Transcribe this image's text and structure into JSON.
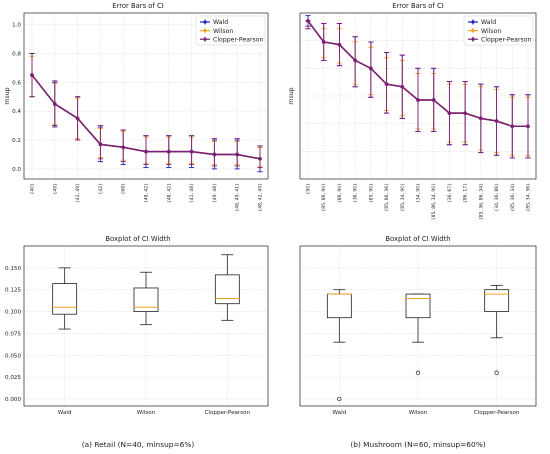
{
  "chart_data": [
    {
      "id": "retail-errorbars",
      "type": "line",
      "title": "Error Bars of CI",
      "ylabel": "msup",
      "ylim": [
        -0.07,
        1.08
      ],
      "yticks": [
        0.0,
        0.2,
        0.4,
        0.6,
        0.8,
        1.0
      ],
      "categories": [
        "{40}",
        "{49}",
        "{41, 49}",
        "{42}",
        "{68}",
        "{49, 42}",
        "{48, 42}",
        "{41, 48}",
        "{49, 48}",
        "{48, 49, 41}",
        "{48, 42, 49}"
      ],
      "legend_position": "top-right",
      "series": [
        {
          "name": "Wald",
          "color": "#1f1fbf",
          "values": [
            0.65,
            0.45,
            0.35,
            0.17,
            0.15,
            0.12,
            0.12,
            0.12,
            0.1,
            0.1,
            0.07
          ],
          "lower": [
            0.5,
            0.3,
            0.2,
            0.05,
            0.03,
            0.01,
            0.01,
            0.01,
            0.0,
            0.0,
            -0.02
          ],
          "upper": [
            0.8,
            0.6,
            0.5,
            0.29,
            0.27,
            0.23,
            0.23,
            0.23,
            0.2,
            0.2,
            0.15
          ]
        },
        {
          "name": "Wilson",
          "color": "#f5a623",
          "values": [
            0.65,
            0.45,
            0.35,
            0.17,
            0.15,
            0.12,
            0.12,
            0.12,
            0.1,
            0.1,
            0.07
          ],
          "lower": [
            0.5,
            0.31,
            0.21,
            0.08,
            0.06,
            0.04,
            0.04,
            0.04,
            0.03,
            0.03,
            0.02
          ],
          "upper": [
            0.78,
            0.59,
            0.49,
            0.28,
            0.26,
            0.22,
            0.22,
            0.22,
            0.19,
            0.19,
            0.15
          ]
        },
        {
          "name": "Clopper-Pearson",
          "color": "#7a1f7a",
          "values": [
            0.65,
            0.45,
            0.35,
            0.17,
            0.15,
            0.12,
            0.12,
            0.12,
            0.1,
            0.1,
            0.07
          ],
          "lower": [
            0.5,
            0.29,
            0.2,
            0.07,
            0.05,
            0.03,
            0.03,
            0.03,
            0.02,
            0.02,
            0.01
          ],
          "upper": [
            0.8,
            0.61,
            0.5,
            0.3,
            0.27,
            0.23,
            0.23,
            0.23,
            0.21,
            0.21,
            0.16
          ]
        }
      ]
    },
    {
      "id": "mushroom-errorbars",
      "type": "line",
      "title": "Error Bars of CI",
      "ylabel": "msup",
      "ylim": [
        0.4,
        1.03
      ],
      "yticks": [],
      "categories": [
        "{90}",
        "{85, 86, 90}",
        "{86, 90}",
        "{36, 90}",
        "{85, 90}",
        "{85, 86, 36}",
        "{85, 34, 90}",
        "{34, 90}",
        "{85, 86, 34, 90}",
        "{36, 67}",
        "{86, 17}",
        "{85, 36, 86, 34}",
        "{34, 36, 86}",
        "{85, 36, 34}",
        "{85, 34, 36}"
      ],
      "legend_position": "top-right",
      "series": [
        {
          "name": "Wald",
          "color": "#1f1fbf",
          "values": [
            1.0,
            0.92,
            0.91,
            0.85,
            0.82,
            0.76,
            0.75,
            0.7,
            0.7,
            0.65,
            0.65,
            0.63,
            0.62,
            0.6,
            0.6
          ],
          "lower": [
            0.98,
            0.85,
            0.83,
            0.75,
            0.71,
            0.65,
            0.63,
            0.58,
            0.58,
            0.53,
            0.53,
            0.5,
            0.49,
            0.48,
            0.48
          ],
          "upper": [
            1.02,
            0.99,
            0.99,
            0.94,
            0.92,
            0.88,
            0.87,
            0.82,
            0.82,
            0.77,
            0.77,
            0.76,
            0.75,
            0.72,
            0.72
          ]
        },
        {
          "name": "Wilson",
          "color": "#f5a623",
          "values": [
            1.0,
            0.92,
            0.91,
            0.85,
            0.82,
            0.76,
            0.75,
            0.7,
            0.7,
            0.65,
            0.65,
            0.63,
            0.62,
            0.6,
            0.6
          ],
          "lower": [
            0.97,
            0.86,
            0.84,
            0.76,
            0.72,
            0.66,
            0.64,
            0.59,
            0.59,
            0.54,
            0.54,
            0.51,
            0.5,
            0.49,
            0.49
          ],
          "upper": [
            1.0,
            0.97,
            0.97,
            0.92,
            0.9,
            0.86,
            0.85,
            0.8,
            0.8,
            0.76,
            0.76,
            0.75,
            0.74,
            0.71,
            0.71
          ]
        },
        {
          "name": "Clopper-Pearson",
          "color": "#7a1f7a",
          "values": [
            1.0,
            0.92,
            0.91,
            0.85,
            0.82,
            0.76,
            0.75,
            0.7,
            0.7,
            0.65,
            0.65,
            0.63,
            0.62,
            0.6,
            0.6
          ],
          "lower": [
            0.97,
            0.85,
            0.83,
            0.75,
            0.71,
            0.65,
            0.63,
            0.58,
            0.58,
            0.53,
            0.53,
            0.5,
            0.49,
            0.48,
            0.48
          ],
          "upper": [
            1.0,
            0.99,
            0.99,
            0.94,
            0.92,
            0.88,
            0.87,
            0.82,
            0.82,
            0.77,
            0.77,
            0.76,
            0.75,
            0.72,
            0.72
          ]
        }
      ]
    },
    {
      "id": "retail-boxplot",
      "type": "box",
      "title": "Boxplot of CI Width",
      "ylim": [
        -0.008,
        0.175
      ],
      "yticks": [
        0.0,
        0.025,
        0.05,
        0.075,
        0.1,
        0.125,
        0.15
      ],
      "ytick_labels": [
        "0.000",
        "0.025",
        "0.050",
        "0.075",
        "0.100",
        "0.125",
        "0.150"
      ],
      "categories": [
        "Wald",
        "Wilson",
        "Clopper-Pearson"
      ],
      "box_color": "#222222",
      "median_color": "#f5a623",
      "boxes": [
        {
          "whislo": 0.08,
          "q1": 0.097,
          "med": 0.105,
          "q3": 0.132,
          "whishi": 0.15,
          "fliers": []
        },
        {
          "whislo": 0.085,
          "q1": 0.1,
          "med": 0.105,
          "q3": 0.127,
          "whishi": 0.145,
          "fliers": []
        },
        {
          "whislo": 0.09,
          "q1": 0.109,
          "med": 0.115,
          "q3": 0.142,
          "whishi": 0.165,
          "fliers": []
        }
      ]
    },
    {
      "id": "mushroom-boxplot",
      "type": "box",
      "title": "Boxplot of CI Width",
      "ylim": [
        -0.008,
        0.175
      ],
      "yticks": [],
      "categories": [
        "Wald",
        "Wilson",
        "Clopper-Pearson"
      ],
      "box_color": "#222222",
      "median_color": "#f5a623",
      "boxes": [
        {
          "whislo": 0.065,
          "q1": 0.093,
          "med": 0.12,
          "q3": 0.12,
          "whishi": 0.125,
          "fliers": [
            0.0
          ]
        },
        {
          "whislo": 0.065,
          "q1": 0.093,
          "med": 0.115,
          "q3": 0.12,
          "whishi": 0.12,
          "fliers": [
            0.03
          ]
        },
        {
          "whislo": 0.07,
          "q1": 0.1,
          "med": 0.12,
          "q3": 0.125,
          "whishi": 0.13,
          "fliers": [
            0.03
          ]
        }
      ]
    }
  ],
  "captions": {
    "left": "(a) Retail (N=40, minsup=6%)",
    "right": "(b) Mushroom (N=60, minsup=60%)"
  },
  "colors": {
    "grid": "#d4d4d4",
    "frame": "#222222"
  }
}
